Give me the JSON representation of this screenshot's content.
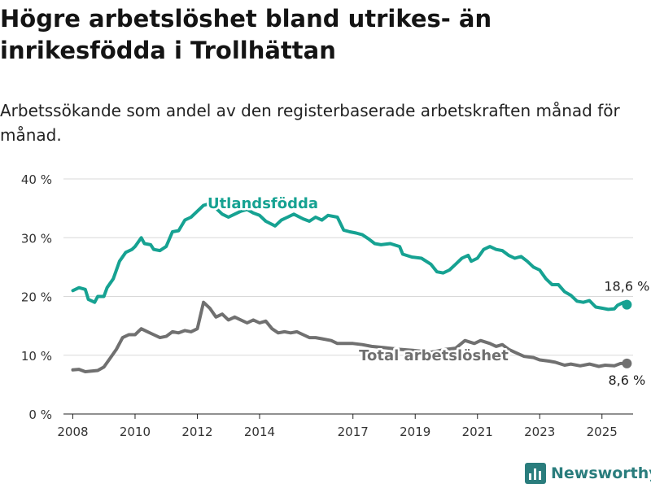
{
  "title": "Högre arbetslöshet bland utrikes- än inrikesfödda i Trollhättan",
  "subtitle": "Arbetssökande som andel av den registerbaserade arbetskraften månad för månad.",
  "brand": "Newsworthy",
  "colors": {
    "utlands": "#16a292",
    "total": "#707070",
    "grid": "#d9d9d9",
    "brand": "#2a7d7d"
  },
  "chart_data": {
    "type": "line",
    "ylim": [
      0,
      40
    ],
    "xlim": [
      2007.7,
      2026.0
    ],
    "y_ticks": [
      0,
      10,
      20,
      30,
      40
    ],
    "y_tick_labels": [
      "0 %",
      "10 %",
      "20 %",
      "30 %",
      "40 %"
    ],
    "x_ticks": [
      2008,
      2010,
      2012,
      2014,
      2017,
      2019,
      2021,
      2023,
      2025
    ],
    "x_tick_labels": [
      "2008",
      "2010",
      "2012",
      "2014",
      "2017",
      "2019",
      "2021",
      "2023",
      "2025"
    ],
    "grid": true,
    "series": [
      {
        "name": "Utlandsfödda",
        "color": "#16a292",
        "end_label": "18,6 %",
        "points": [
          [
            2008.0,
            21.0
          ],
          [
            2008.2,
            21.5
          ],
          [
            2008.4,
            21.2
          ],
          [
            2008.5,
            19.5
          ],
          [
            2008.7,
            19.0
          ],
          [
            2008.8,
            20.0
          ],
          [
            2009.0,
            20.0
          ],
          [
            2009.1,
            21.5
          ],
          [
            2009.3,
            23.0
          ],
          [
            2009.5,
            26.0
          ],
          [
            2009.7,
            27.5
          ],
          [
            2009.9,
            28.0
          ],
          [
            2010.0,
            28.5
          ],
          [
            2010.2,
            30.0
          ],
          [
            2010.3,
            29.0
          ],
          [
            2010.5,
            28.8
          ],
          [
            2010.6,
            28.0
          ],
          [
            2010.8,
            27.8
          ],
          [
            2011.0,
            28.5
          ],
          [
            2011.2,
            31.0
          ],
          [
            2011.4,
            31.2
          ],
          [
            2011.6,
            33.0
          ],
          [
            2011.8,
            33.5
          ],
          [
            2012.0,
            34.5
          ],
          [
            2012.2,
            35.5
          ],
          [
            2012.4,
            35.8
          ],
          [
            2012.6,
            35.0
          ],
          [
            2012.8,
            34.0
          ],
          [
            2013.0,
            33.5
          ],
          [
            2013.2,
            34.0
          ],
          [
            2013.4,
            34.5
          ],
          [
            2013.6,
            34.8
          ],
          [
            2013.8,
            34.2
          ],
          [
            2014.0,
            33.8
          ],
          [
            2014.2,
            32.8
          ],
          [
            2014.5,
            32.0
          ],
          [
            2014.7,
            33.0
          ],
          [
            2014.9,
            33.5
          ],
          [
            2015.1,
            34.0
          ],
          [
            2015.4,
            33.2
          ],
          [
            2015.6,
            32.8
          ],
          [
            2015.8,
            33.5
          ],
          [
            2016.0,
            33.0
          ],
          [
            2016.2,
            33.8
          ],
          [
            2016.5,
            33.5
          ],
          [
            2016.7,
            31.3
          ],
          [
            2016.9,
            31.0
          ],
          [
            2017.1,
            30.8
          ],
          [
            2017.3,
            30.5
          ],
          [
            2017.5,
            29.8
          ],
          [
            2017.7,
            29.0
          ],
          [
            2017.9,
            28.8
          ],
          [
            2018.2,
            29.0
          ],
          [
            2018.5,
            28.5
          ],
          [
            2018.6,
            27.2
          ],
          [
            2018.9,
            26.7
          ],
          [
            2019.2,
            26.5
          ],
          [
            2019.5,
            25.5
          ],
          [
            2019.7,
            24.2
          ],
          [
            2019.9,
            24.0
          ],
          [
            2020.1,
            24.5
          ],
          [
            2020.3,
            25.5
          ],
          [
            2020.5,
            26.5
          ],
          [
            2020.7,
            27.0
          ],
          [
            2020.8,
            26.0
          ],
          [
            2021.0,
            26.5
          ],
          [
            2021.2,
            28.0
          ],
          [
            2021.4,
            28.5
          ],
          [
            2021.6,
            28.0
          ],
          [
            2021.8,
            27.8
          ],
          [
            2022.0,
            27.0
          ],
          [
            2022.2,
            26.5
          ],
          [
            2022.4,
            26.8
          ],
          [
            2022.6,
            26.0
          ],
          [
            2022.8,
            25.0
          ],
          [
            2023.0,
            24.5
          ],
          [
            2023.2,
            23.0
          ],
          [
            2023.4,
            22.0
          ],
          [
            2023.6,
            22.0
          ],
          [
            2023.8,
            20.8
          ],
          [
            2024.0,
            20.2
          ],
          [
            2024.2,
            19.2
          ],
          [
            2024.4,
            19.0
          ],
          [
            2024.6,
            19.3
          ],
          [
            2024.8,
            18.2
          ],
          [
            2025.0,
            18.0
          ],
          [
            2025.2,
            17.8
          ],
          [
            2025.4,
            17.9
          ],
          [
            2025.5,
            18.5
          ],
          [
            2025.7,
            19.0
          ],
          [
            2025.8,
            18.6
          ]
        ]
      },
      {
        "name": "Total arbetslöshet",
        "color": "#707070",
        "end_label": "8,6 %",
        "points": [
          [
            2008.0,
            7.5
          ],
          [
            2008.2,
            7.6
          ],
          [
            2008.4,
            7.2
          ],
          [
            2008.6,
            7.3
          ],
          [
            2008.8,
            7.4
          ],
          [
            2009.0,
            8.0
          ],
          [
            2009.2,
            9.5
          ],
          [
            2009.4,
            11.0
          ],
          [
            2009.6,
            13.0
          ],
          [
            2009.8,
            13.5
          ],
          [
            2010.0,
            13.5
          ],
          [
            2010.2,
            14.5
          ],
          [
            2010.4,
            14.0
          ],
          [
            2010.6,
            13.5
          ],
          [
            2010.8,
            13.0
          ],
          [
            2011.0,
            13.2
          ],
          [
            2011.2,
            14.0
          ],
          [
            2011.4,
            13.8
          ],
          [
            2011.6,
            14.2
          ],
          [
            2011.8,
            14.0
          ],
          [
            2012.0,
            14.5
          ],
          [
            2012.2,
            19.0
          ],
          [
            2012.4,
            18.0
          ],
          [
            2012.6,
            16.5
          ],
          [
            2012.8,
            17.0
          ],
          [
            2013.0,
            16.0
          ],
          [
            2013.2,
            16.5
          ],
          [
            2013.4,
            16.0
          ],
          [
            2013.6,
            15.5
          ],
          [
            2013.8,
            16.0
          ],
          [
            2014.0,
            15.5
          ],
          [
            2014.2,
            15.8
          ],
          [
            2014.4,
            14.5
          ],
          [
            2014.6,
            13.8
          ],
          [
            2014.8,
            14.0
          ],
          [
            2015.0,
            13.8
          ],
          [
            2015.2,
            14.0
          ],
          [
            2015.4,
            13.5
          ],
          [
            2015.6,
            13.0
          ],
          [
            2015.8,
            13.0
          ],
          [
            2016.0,
            12.8
          ],
          [
            2016.3,
            12.5
          ],
          [
            2016.5,
            12.0
          ],
          [
            2016.8,
            12.0
          ],
          [
            2017.0,
            12.0
          ],
          [
            2017.3,
            11.8
          ],
          [
            2017.6,
            11.5
          ],
          [
            2018.0,
            11.3
          ],
          [
            2018.5,
            11.0
          ],
          [
            2019.0,
            10.8
          ],
          [
            2019.5,
            10.5
          ],
          [
            2020.0,
            11.0
          ],
          [
            2020.3,
            11.2
          ],
          [
            2020.6,
            12.5
          ],
          [
            2020.9,
            12.0
          ],
          [
            2021.1,
            12.5
          ],
          [
            2021.4,
            12.0
          ],
          [
            2021.6,
            11.5
          ],
          [
            2021.8,
            11.8
          ],
          [
            2022.0,
            11.0
          ],
          [
            2022.2,
            10.5
          ],
          [
            2022.5,
            9.8
          ],
          [
            2022.8,
            9.6
          ],
          [
            2023.0,
            9.2
          ],
          [
            2023.3,
            9.0
          ],
          [
            2023.5,
            8.8
          ],
          [
            2023.8,
            8.3
          ],
          [
            2024.0,
            8.5
          ],
          [
            2024.3,
            8.2
          ],
          [
            2024.6,
            8.5
          ],
          [
            2024.9,
            8.1
          ],
          [
            2025.1,
            8.3
          ],
          [
            2025.4,
            8.2
          ],
          [
            2025.6,
            8.6
          ],
          [
            2025.8,
            8.6
          ]
        ]
      }
    ]
  }
}
